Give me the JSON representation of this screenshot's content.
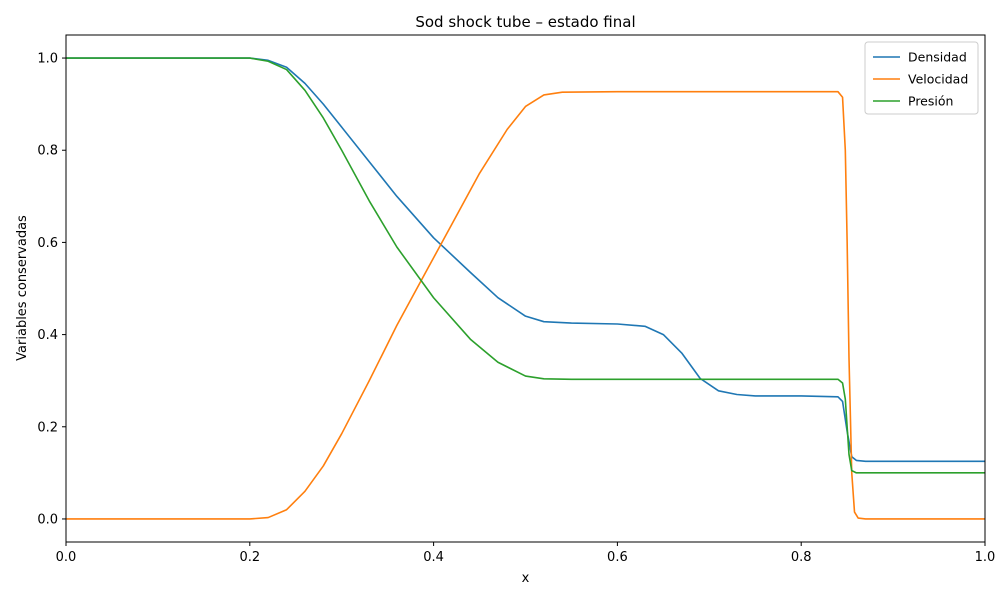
{
  "chart_data": {
    "type": "line",
    "title": "Sod shock tube – estado final",
    "xlabel": "x",
    "ylabel": "Variables conservadas",
    "xlim": [
      0,
      1
    ],
    "ylim": [
      -0.05,
      1.05
    ],
    "xticks": [
      0,
      0.2,
      0.4,
      0.6,
      0.8,
      1.0
    ],
    "xtick_labels": [
      "0.0",
      "0.2",
      "0.4",
      "0.6",
      "0.8",
      "1.0"
    ],
    "yticks": [
      0,
      0.2,
      0.4,
      0.6,
      0.8,
      1.0
    ],
    "ytick_labels": [
      "0.0",
      "0.2",
      "0.4",
      "0.6",
      "0.8",
      "1.0"
    ],
    "grid": false,
    "legend_position": "top-right",
    "series": [
      {
        "name": "Densidad",
        "color": "#1f77b4",
        "x": [
          0,
          0.2,
          0.22,
          0.24,
          0.26,
          0.28,
          0.3,
          0.33,
          0.36,
          0.4,
          0.44,
          0.47,
          0.5,
          0.52,
          0.55,
          0.6,
          0.63,
          0.65,
          0.67,
          0.69,
          0.71,
          0.73,
          0.75,
          0.8,
          0.84,
          0.845,
          0.85,
          0.855,
          0.86,
          0.87,
          1.0
        ],
        "y": [
          1.0,
          1.0,
          0.995,
          0.98,
          0.945,
          0.9,
          0.85,
          0.775,
          0.7,
          0.61,
          0.535,
          0.48,
          0.44,
          0.428,
          0.425,
          0.423,
          0.418,
          0.4,
          0.36,
          0.305,
          0.278,
          0.27,
          0.267,
          0.267,
          0.265,
          0.255,
          0.19,
          0.135,
          0.127,
          0.125,
          0.125
        ]
      },
      {
        "name": "Velocidad",
        "color": "#ff7f0e",
        "x": [
          0,
          0.2,
          0.22,
          0.24,
          0.26,
          0.28,
          0.3,
          0.33,
          0.36,
          0.39,
          0.42,
          0.45,
          0.48,
          0.5,
          0.52,
          0.54,
          0.6,
          0.7,
          0.84,
          0.845,
          0.848,
          0.85,
          0.852,
          0.855,
          0.858,
          0.862,
          0.87,
          1.0
        ],
        "y": [
          0,
          0,
          0.003,
          0.02,
          0.06,
          0.115,
          0.185,
          0.3,
          0.42,
          0.53,
          0.64,
          0.75,
          0.845,
          0.895,
          0.92,
          0.926,
          0.927,
          0.927,
          0.927,
          0.915,
          0.8,
          0.6,
          0.35,
          0.1,
          0.015,
          0.002,
          0,
          0
        ]
      },
      {
        "name": "Presión",
        "color": "#2ca02c",
        "x": [
          0,
          0.2,
          0.22,
          0.24,
          0.26,
          0.28,
          0.3,
          0.33,
          0.36,
          0.4,
          0.44,
          0.47,
          0.5,
          0.52,
          0.55,
          0.6,
          0.7,
          0.8,
          0.84,
          0.845,
          0.848,
          0.85,
          0.852,
          0.855,
          0.86,
          0.87,
          1.0
        ],
        "y": [
          1.0,
          1.0,
          0.993,
          0.975,
          0.93,
          0.87,
          0.8,
          0.69,
          0.59,
          0.48,
          0.39,
          0.34,
          0.31,
          0.304,
          0.303,
          0.303,
          0.303,
          0.303,
          0.303,
          0.295,
          0.26,
          0.2,
          0.14,
          0.105,
          0.1,
          0.1,
          0.1
        ]
      }
    ]
  }
}
